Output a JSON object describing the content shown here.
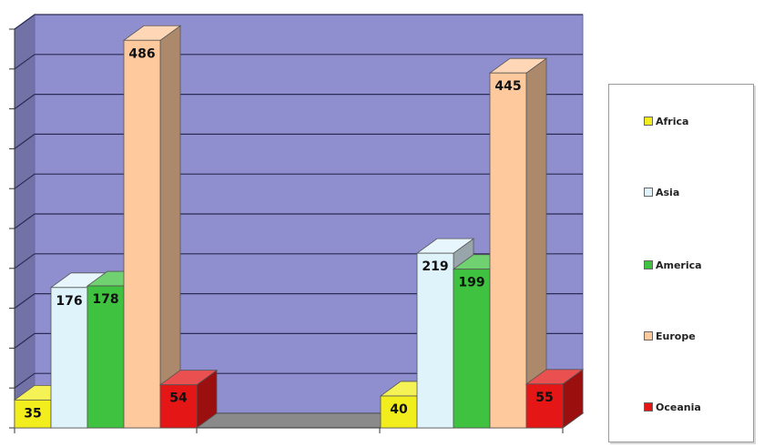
{
  "chart_data": {
    "type": "bar",
    "categories": [
      "",
      ""
    ],
    "series": [
      {
        "name": "Africa",
        "values": [
          35,
          40
        ]
      },
      {
        "name": "Asia",
        "values": [
          176,
          219
        ]
      },
      {
        "name": "America",
        "values": [
          178,
          199
        ]
      },
      {
        "name": "Europe",
        "values": [
          486,
          445
        ]
      },
      {
        "name": "Oceania",
        "values": [
          54,
          55
        ]
      }
    ],
    "ylim": [
      0,
      500
    ],
    "grid": true,
    "legend_position": "right",
    "colors": {
      "Africa": "#f2ee1e",
      "Asia": "#dff3fb",
      "America": "#3fc23f",
      "Europe": "#ffc99e",
      "Oceania": "#e41616",
      "wall": "#8f8fcf",
      "floor": "#8a8a8a"
    }
  }
}
